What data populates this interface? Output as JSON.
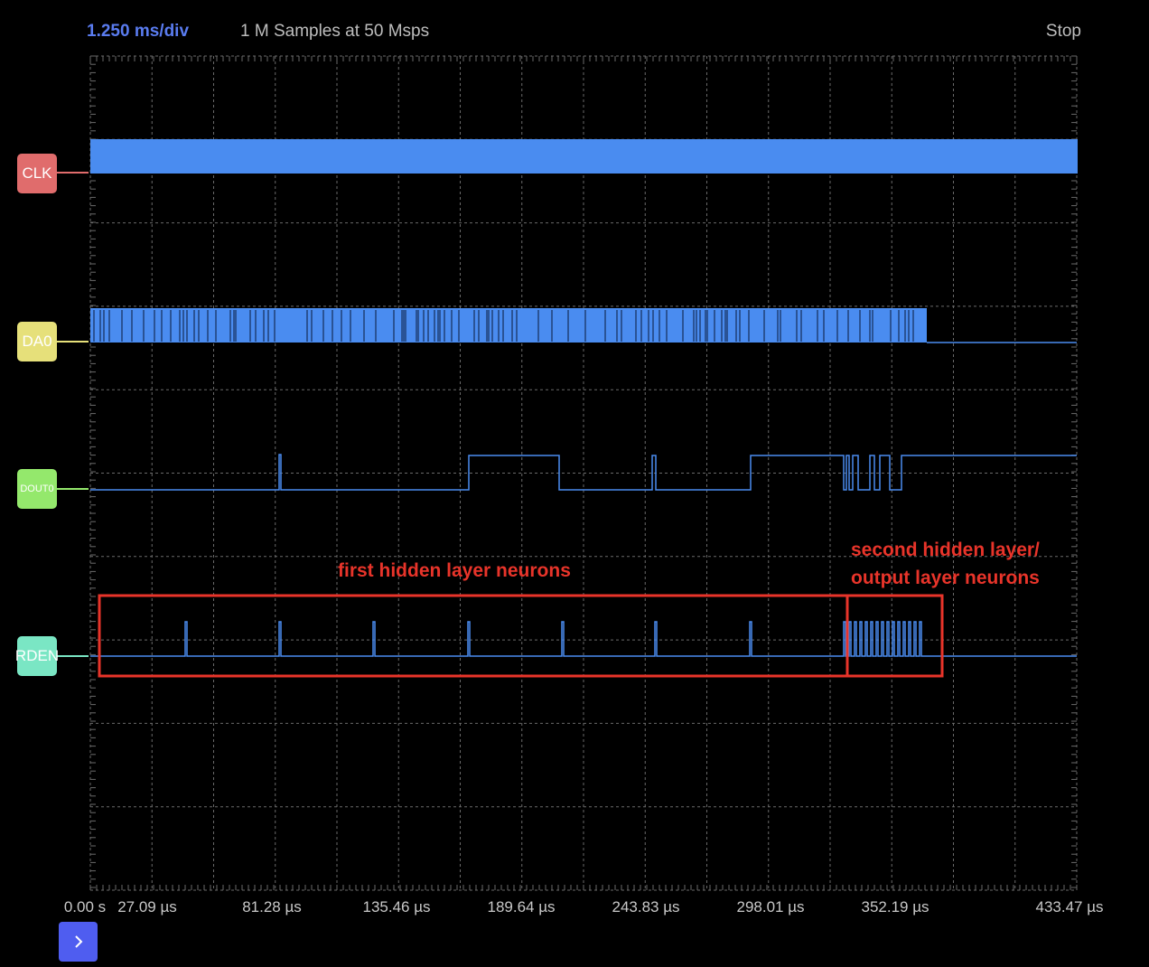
{
  "header": {
    "timebase": "1.250 ms/div",
    "samples": "1 M Samples at 50 Msps",
    "status": "Stop"
  },
  "channels": [
    {
      "name": "CLK",
      "color": "#e06c6c",
      "line_color": "#e06c6c"
    },
    {
      "name": "DA0",
      "color": "#e6e07a",
      "line_color": "#e6e07a"
    },
    {
      "name": "DOUT0",
      "color": "#94e86c",
      "line_color": "#94e86c"
    },
    {
      "name": "RDEN",
      "color": "#7ae6c4",
      "line_color": "#7ae6c4"
    }
  ],
  "time_axis": {
    "labels": [
      "0.00 s",
      "27.09 µs",
      "81.28 µs",
      "135.46 µs",
      "189.64 µs",
      "243.83 µs",
      "298.01 µs",
      "352.19 µs",
      "433.47 µs"
    ]
  },
  "annotations": {
    "first": "first hidden layer neurons",
    "second_line1": "second hidden layer/",
    "second_line2": "output layer neurons"
  },
  "colors": {
    "trace": "#4a8cf0",
    "grid": "#6a6a6a",
    "annotation": "#e8342a",
    "run_button": "#4f5df0"
  },
  "icons": {
    "run": "chevron-right-icon"
  }
}
